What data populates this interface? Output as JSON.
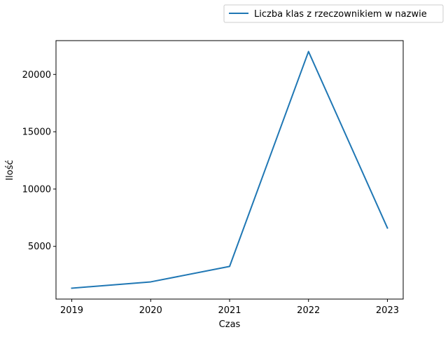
{
  "chart_data": {
    "type": "line",
    "x": [
      "2019",
      "2020",
      "2021",
      "2022",
      "2023"
    ],
    "series": [
      {
        "name": "Liczba klas z rzeczownikiem w nazwie",
        "values": [
          1350,
          1900,
          3250,
          22000,
          6600
        ],
        "color": "#1f77b4"
      }
    ],
    "xlabel": "Czas",
    "ylabel": "Ilość",
    "yticks": [
      5000,
      10000,
      15000,
      20000
    ],
    "ylim": [
      400,
      22950
    ],
    "xlim": [
      2018.8,
      2023.2
    ],
    "grid": false,
    "legend_position": "top-right"
  }
}
